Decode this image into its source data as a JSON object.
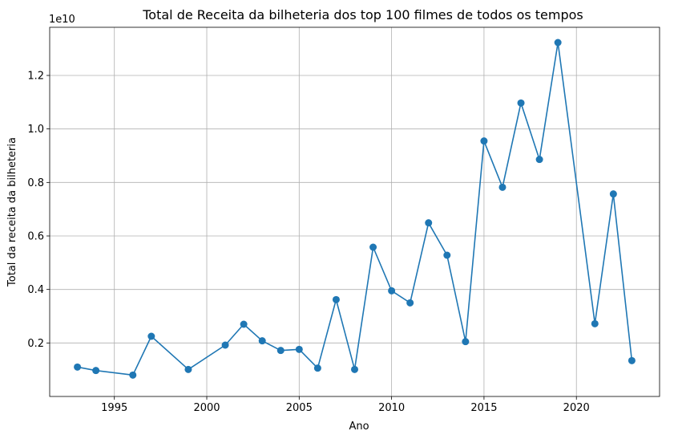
{
  "chart_data": {
    "type": "line",
    "title": "Total de Receita da bilheteria dos top 100 filmes de todos os tempos",
    "xlabel": "Ano",
    "ylabel": "Total da receita da bilheteria",
    "y_offset_label": "1e10",
    "xlim": [
      1991.5,
      2024.5
    ],
    "ylim": [
      0.0,
      1.38
    ],
    "y_scale_note": "values in units of 1e10",
    "x_ticks": [
      1995,
      2000,
      2005,
      2010,
      2015,
      2020
    ],
    "x_tick_labels": [
      "1995",
      "2000",
      "2005",
      "2010",
      "2015",
      "2020"
    ],
    "y_ticks": [
      0.2,
      0.4,
      0.6,
      0.8,
      1.0,
      1.2
    ],
    "y_tick_labels": [
      "0.2",
      "0.4",
      "0.6",
      "0.8",
      "1.0",
      "1.2"
    ],
    "grid": true,
    "series": [
      {
        "color": "#1f77b4",
        "marker": "circle",
        "x": [
          1993,
          1994,
          1996,
          1997,
          1999,
          2001,
          2002,
          2003,
          2004,
          2005,
          2006,
          2007,
          2008,
          2009,
          2010,
          2011,
          2012,
          2013,
          2014,
          2015,
          2016,
          2017,
          2018,
          2019,
          2021,
          2022,
          2023
        ],
        "y": [
          0.11,
          0.097,
          0.08,
          0.225,
          0.101,
          0.192,
          0.27,
          0.208,
          0.172,
          0.176,
          0.106,
          0.362,
          0.101,
          0.558,
          0.395,
          0.35,
          0.649,
          0.528,
          0.205,
          0.955,
          0.782,
          1.097,
          0.886,
          1.323,
          0.272,
          0.757,
          0.134
        ]
      }
    ]
  }
}
